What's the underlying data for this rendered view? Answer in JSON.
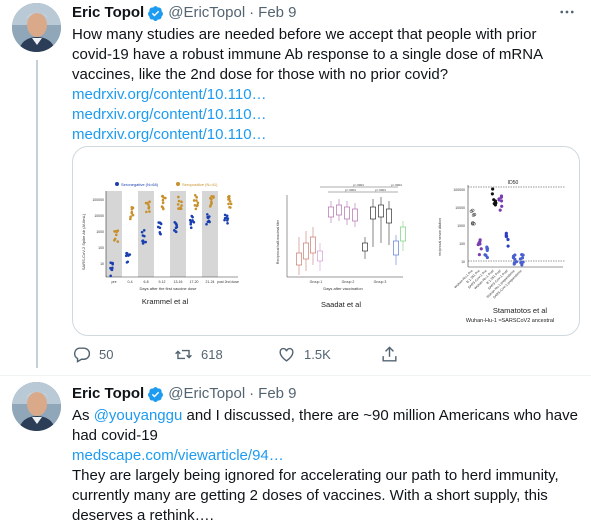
{
  "tweets": [
    {
      "author": {
        "name": "Eric Topol",
        "handle": "@EricTopol",
        "separator": "·",
        "date": "Feb 9",
        "verified": true
      },
      "text_lines": [
        "How many studies are needed before we accept that people with prior",
        "covid-19 have a robust immune Ab response to a single dose of mRNA",
        "vaccines, like the 2nd dose for those with no prior covid?"
      ],
      "links": [
        "medrxiv.org/content/10.110…",
        "medrxiv.org/content/10.110…",
        "medrxiv.org/content/10.110…"
      ],
      "media": {
        "panels": [
          {
            "caption": "Krammel et al",
            "legend": [
              "Seronegative (N=68)",
              "Seropositive (N=41)"
            ],
            "ylabel": "SARS-CoV-2 Spike Ab (AU/mL)",
            "y_ticks": [
              "100000",
              "10000",
              "1000",
              "100",
              "10"
            ],
            "x_ticks": [
              "pre",
              "0-4",
              "6-8",
              "9-12",
              "13-16",
              "17-20",
              "21-24",
              "post 2nd dose"
            ],
            "xlabel": "Days after the first vaccine dose"
          },
          {
            "caption": "Saadat et al",
            "ylabel": "Reciprocal half-maximal titer",
            "xlabel": "Days after vaccination",
            "groups": [
              "Group 1",
              "Group 2",
              "Group 3"
            ],
            "pvalues": [
              "p<.0001",
              "p<.0001",
              "p<.0001",
              "p<.0001"
            ]
          },
          {
            "caption": "Stamatotos et al",
            "subcaption": "Wuhan-Hu-1 ≈SARSCoV2 ancestral",
            "title": "ID50",
            "ylabel": "reciprocal serum dilution",
            "y_ticks": [
              "100000",
              "10000",
              "1000",
              "100",
              "10"
            ],
            "x_ticks": [
              "Wuhan-Hu-1 Pre",
              "B.1.351 Pre",
              "SARS-CoV-1 Pre",
              "Wuhan-Hu-1 Post",
              "B.1.351 Post",
              "SARS-CoV-1 Post",
              "Wuhan-Hu-1 prepandemic",
              "SARS-CoV-1 prepandemic"
            ]
          }
        ]
      },
      "actions": {
        "reply": "50",
        "retweet": "618",
        "like": "1.5K"
      }
    },
    {
      "author": {
        "name": "Eric Topol",
        "handle": "@EricTopol",
        "separator": "·",
        "date": "Feb 9",
        "verified": true
      },
      "text_prefix": "As ",
      "mention": "@youyanggu",
      "text_after_mention": " and I discussed, there are ~90 million Americans who have",
      "text_line2": "had covid-19",
      "link": "medscape.com/viewarticle/94…",
      "text_lines_after": [
        "They are largely being ignored for accelerating our path to herd immunity,",
        "currently many are getting 2 doses of vaccines. With a short supply, this",
        "deserves a rethink…."
      ]
    }
  ],
  "colors": {
    "link": "#1d9bf0",
    "text": "#0f1419",
    "muted": "#536471",
    "verified": "#1d9bf0",
    "seronegative": "#1a3fb0",
    "seropositive": "#c8902a"
  }
}
